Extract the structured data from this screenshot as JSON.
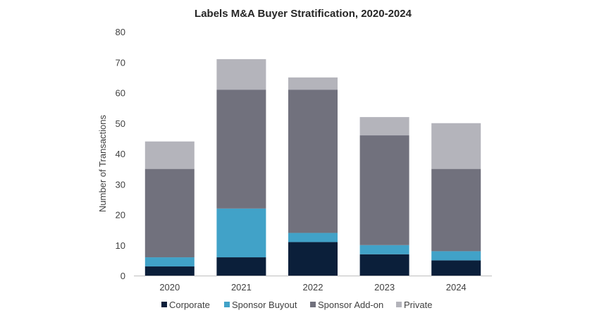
{
  "chart_data": {
    "type": "bar",
    "stacked": true,
    "title": "Labels M&A Buyer Stratification, 2020-2024",
    "xlabel": "",
    "ylabel": "Number of Transactions",
    "ylim": [
      0,
      80
    ],
    "yticks": [
      0,
      10,
      20,
      30,
      40,
      50,
      60,
      70,
      80
    ],
    "grid": false,
    "legend_position": "bottom",
    "categories": [
      "2020",
      "2021",
      "2022",
      "2023",
      "2024"
    ],
    "series": [
      {
        "name": "Corporate",
        "color": "#0b1f3a",
        "values": [
          3,
          6,
          11,
          7,
          5
        ]
      },
      {
        "name": "Sponsor Buyout",
        "color": "#41a2c8",
        "values": [
          3,
          16,
          3,
          3,
          3
        ]
      },
      {
        "name": "Sponsor Add-on",
        "color": "#71717d",
        "values": [
          29,
          39,
          47,
          36,
          27
        ]
      },
      {
        "name": "Private",
        "color": "#b4b4bb",
        "values": [
          9,
          10,
          4,
          6,
          15
        ]
      }
    ]
  }
}
